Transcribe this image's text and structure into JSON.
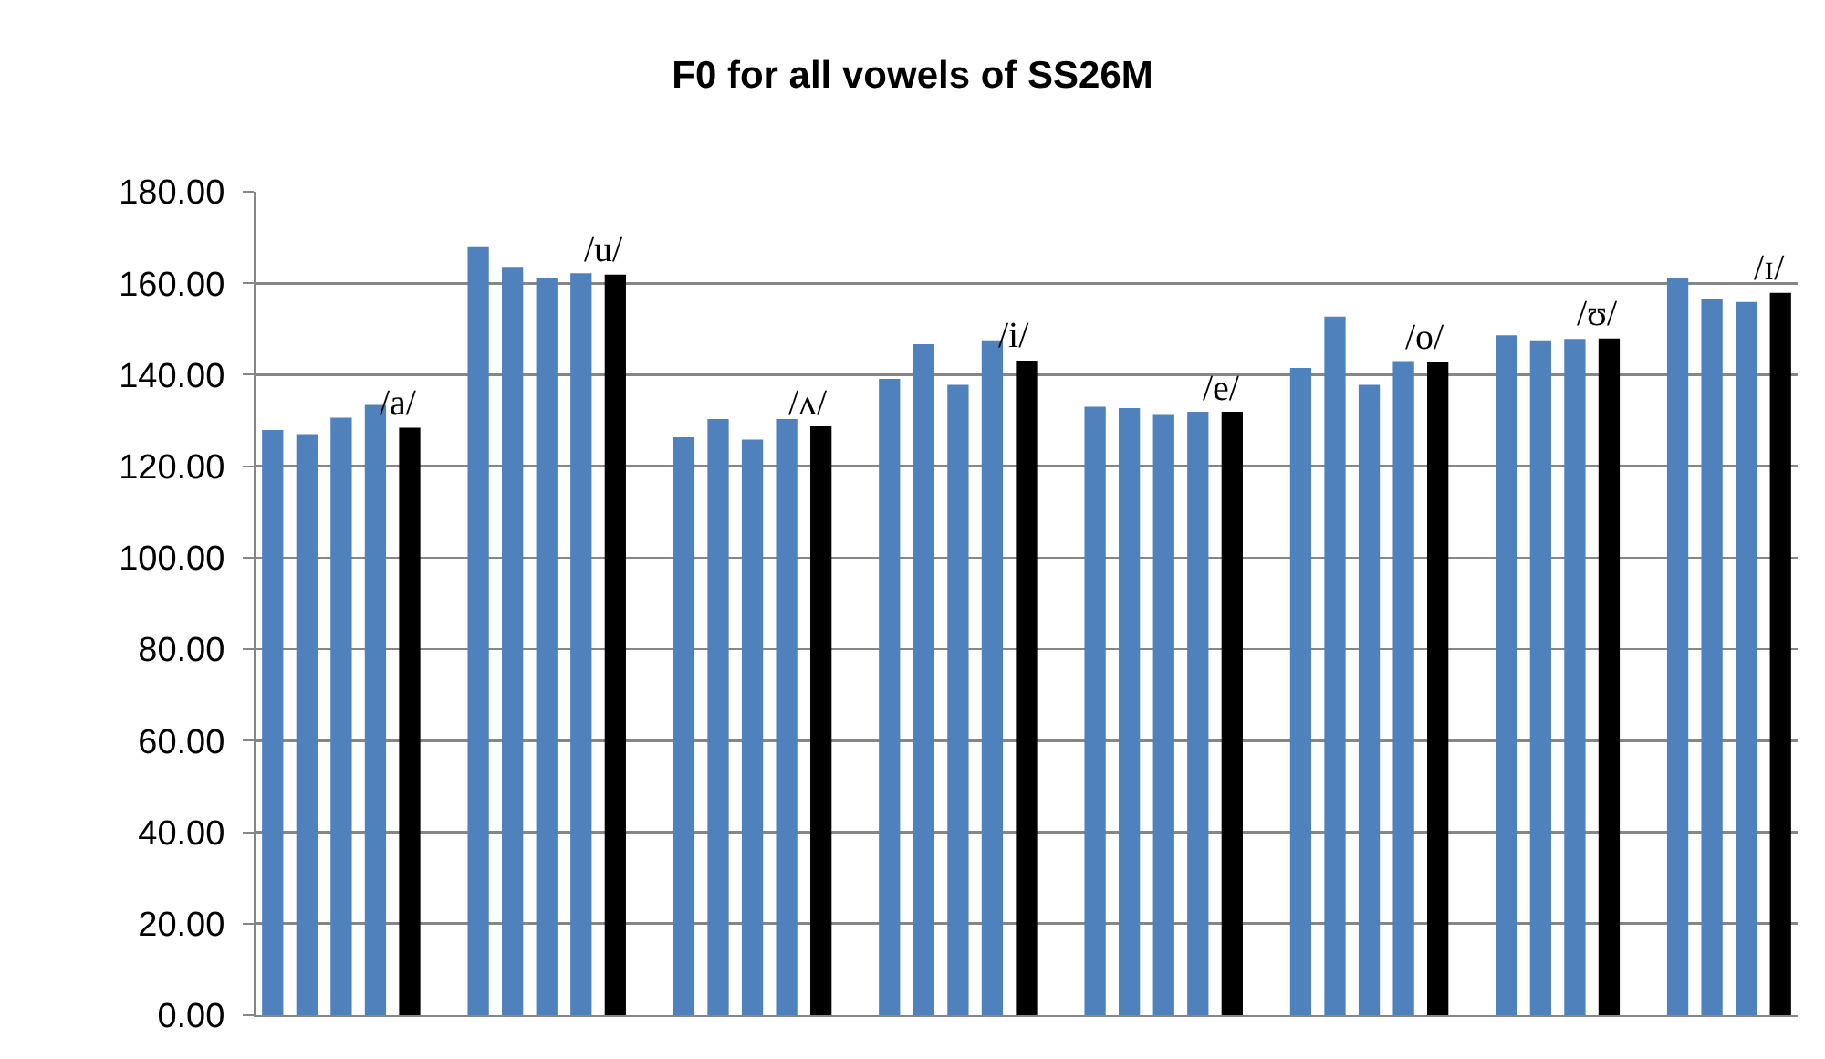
{
  "chart_data": {
    "type": "bar",
    "title": "F0 for all vowels of SS26M",
    "categories": [
      null,
      null,
      null,
      null,
      null,
      null,
      null,
      null,
      null,
      null,
      null,
      null,
      null,
      null,
      null,
      null,
      null,
      null,
      null,
      null,
      null,
      null,
      null,
      null,
      null,
      null,
      null,
      null,
      null,
      null,
      null,
      null,
      null,
      null,
      null,
      null,
      null,
      null,
      null,
      null,
      null,
      null,
      null,
      null,
      null
    ],
    "values": [
      127.9,
      127.0,
      130.6,
      133.4,
      128.4,
      null,
      167.9,
      163.4,
      161.1,
      162.2,
      161.9,
      null,
      126.3,
      130.3,
      125.8,
      130.3,
      128.7,
      null,
      139.1,
      146.7,
      137.8,
      147.5,
      143.1,
      null,
      133.0,
      132.7,
      131.2,
      131.9,
      131.9,
      null,
      141.5,
      152.7,
      137.8,
      143.0,
      142.7,
      null,
      148.6,
      147.5,
      147.8,
      147.9,
      null,
      161.1,
      156.6,
      155.9,
      157.9
    ],
    "colors": [
      "#4f81bd",
      "#4f81bd",
      "#4f81bd",
      "#4f81bd",
      "#000000",
      null,
      "#4f81bd",
      "#4f81bd",
      "#4f81bd",
      "#4f81bd",
      "#000000",
      null,
      "#4f81bd",
      "#4f81bd",
      "#4f81bd",
      "#4f81bd",
      "#000000",
      null,
      "#4f81bd",
      "#4f81bd",
      "#4f81bd",
      "#4f81bd",
      "#000000",
      null,
      "#4f81bd",
      "#4f81bd",
      "#4f81bd",
      "#4f81bd",
      "#000000",
      null,
      "#4f81bd",
      "#4f81bd",
      "#4f81bd",
      "#4f81bd",
      "#000000",
      null,
      "#4f81bd",
      "#4f81bd",
      "#4f81bd",
      "#000000",
      null,
      "#4f81bd",
      "#4f81bd",
      "#4f81bd",
      "#000000"
    ],
    "value_labels": [
      null,
      null,
      null,
      null,
      "/a/",
      null,
      null,
      null,
      null,
      null,
      "/u/",
      null,
      null,
      null,
      null,
      null,
      "/ʌ/",
      null,
      null,
      null,
      null,
      null,
      "/i/",
      null,
      null,
      null,
      null,
      null,
      "/e/",
      null,
      null,
      null,
      null,
      null,
      "/o/",
      null,
      null,
      null,
      null,
      "/ʊ/",
      null,
      null,
      null,
      null,
      "/ɪ/"
    ],
    "ylim": [
      0,
      180
    ],
    "yticks": [
      {
        "value": 0,
        "label": "0.00"
      },
      {
        "value": 20,
        "label": "20.00"
      },
      {
        "value": 40,
        "label": "40.00"
      },
      {
        "value": 60,
        "label": "60.00"
      },
      {
        "value": 80,
        "label": "80.00"
      },
      {
        "value": 100,
        "label": "100.00"
      },
      {
        "value": 120,
        "label": "120.00"
      },
      {
        "value": 140,
        "label": "140.00"
      },
      {
        "value": 160,
        "label": "160.00"
      },
      {
        "value": 180,
        "label": "180.00"
      }
    ],
    "grid": "y"
  }
}
